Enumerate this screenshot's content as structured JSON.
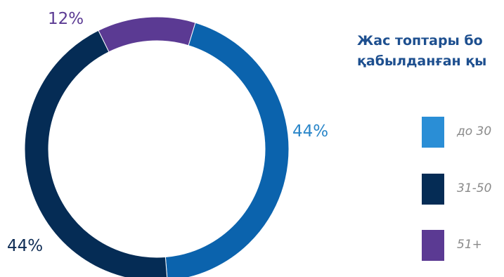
{
  "chart_data": {
    "type": "pie",
    "variant": "donut",
    "title": "Жас топтары бо\nқабылданған қы",
    "categories": [
      "до 30",
      "31-50",
      "51+"
    ],
    "values": [
      44,
      44,
      12
    ],
    "labels": [
      "44%",
      "44%",
      "12%"
    ],
    "colors": [
      "#0b63ad",
      "#052c55",
      "#5b3a93"
    ],
    "legend_colors": [
      "#2a8ed6",
      "#052c55",
      "#5b3a93"
    ],
    "label_colors": [
      "#2a86c9",
      "#0e2c55",
      "#5b3a93"
    ],
    "legend_position": "right"
  }
}
